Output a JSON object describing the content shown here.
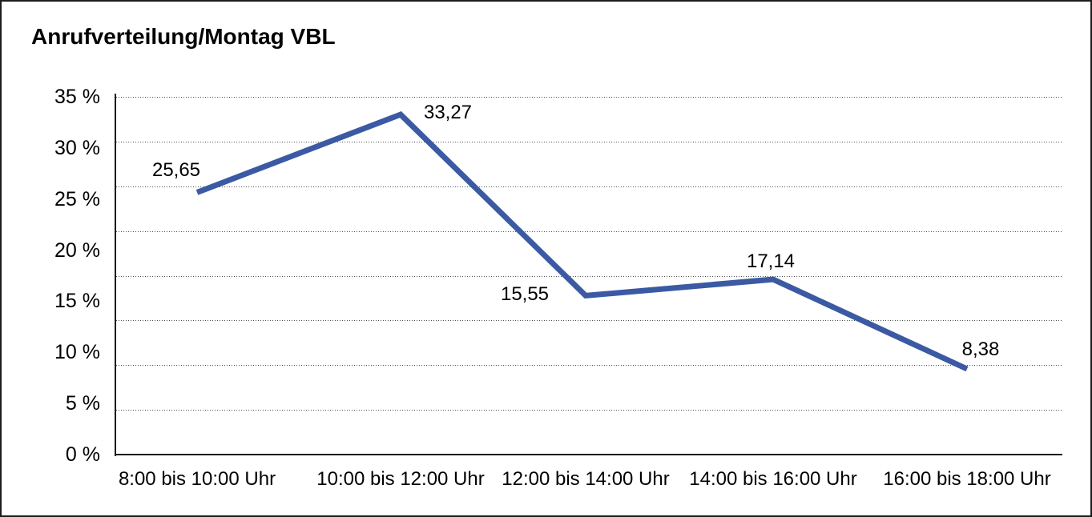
{
  "chart_data": {
    "type": "line",
    "title": "Anrufverteilung/Montag VBL",
    "categories": [
      "8:00 bis 10:00 Uhr",
      "10:00 bis 12:00 Uhr",
      "12:00 bis 14:00 Uhr",
      "14:00 bis 16:00 Uhr",
      "16:00 bis 18:00 Uhr"
    ],
    "values": [
      25.65,
      33.27,
      15.55,
      17.14,
      8.38
    ],
    "point_labels": [
      "25,65",
      "33,27",
      "15,55",
      "17,14",
      "8,38"
    ],
    "xlabel": "",
    "ylabel": "",
    "ylim": [
      0,
      35
    ],
    "ytick_labels": [
      "0 %",
      "5 %",
      "10 %",
      "15 %",
      "20 %",
      "25 %",
      "30 %",
      "35 %"
    ],
    "ytick_values": [
      0,
      5,
      10,
      15,
      20,
      25,
      30,
      35
    ],
    "grid": "horizontal dotted lines, 8 even divisions of plot height",
    "legend": "none",
    "line_color": "#3B5AA3",
    "axis_color": "#1a1a1a",
    "text_color": "#000000",
    "background_color": "#ffffff"
  }
}
